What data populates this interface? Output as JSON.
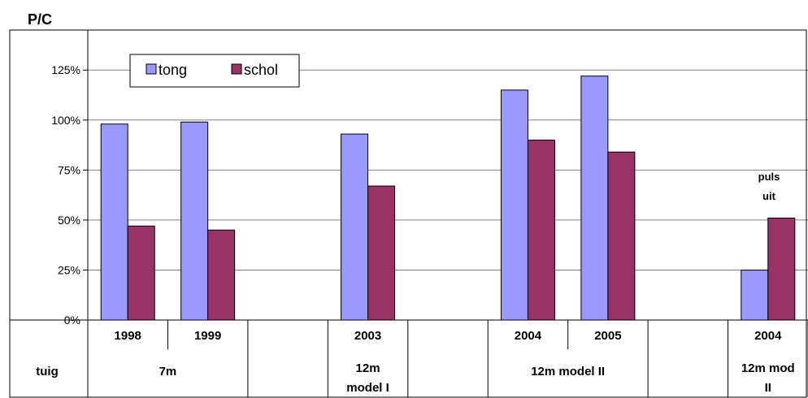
{
  "chart_data": {
    "type": "bar",
    "title": "P/C",
    "ylabel": "",
    "xlabel": "",
    "ylim": [
      0,
      1.45
    ],
    "yticks": [
      "0%",
      "25%",
      "50%",
      "75%",
      "100%",
      "125%"
    ],
    "grid": true,
    "legend_position": "top-left",
    "categories": [
      "1998",
      "1999",
      "",
      "2003",
      "",
      "2004",
      "2005",
      "",
      "2004"
    ],
    "series": [
      {
        "name": "tong",
        "color": "#9999FF",
        "values": [
          0.98,
          0.99,
          null,
          0.93,
          null,
          1.15,
          1.22,
          null,
          0.25
        ]
      },
      {
        "name": "schol",
        "color": "#993366",
        "values": [
          0.47,
          0.45,
          null,
          0.67,
          null,
          0.9,
          0.84,
          null,
          0.51
        ]
      }
    ],
    "annotation": {
      "line1": "puls",
      "line2": "uit"
    },
    "table_row": {
      "label": "tuig",
      "groups": [
        {
          "text": "7m",
          "line2": ""
        },
        {
          "text": "",
          "line2": ""
        },
        {
          "text": "12m",
          "line2": "model I"
        },
        {
          "text": "",
          "line2": ""
        },
        {
          "text": "12m model II",
          "line2": ""
        },
        {
          "text": "",
          "line2": ""
        },
        {
          "text": "12m mod",
          "line2": "II"
        }
      ]
    }
  }
}
